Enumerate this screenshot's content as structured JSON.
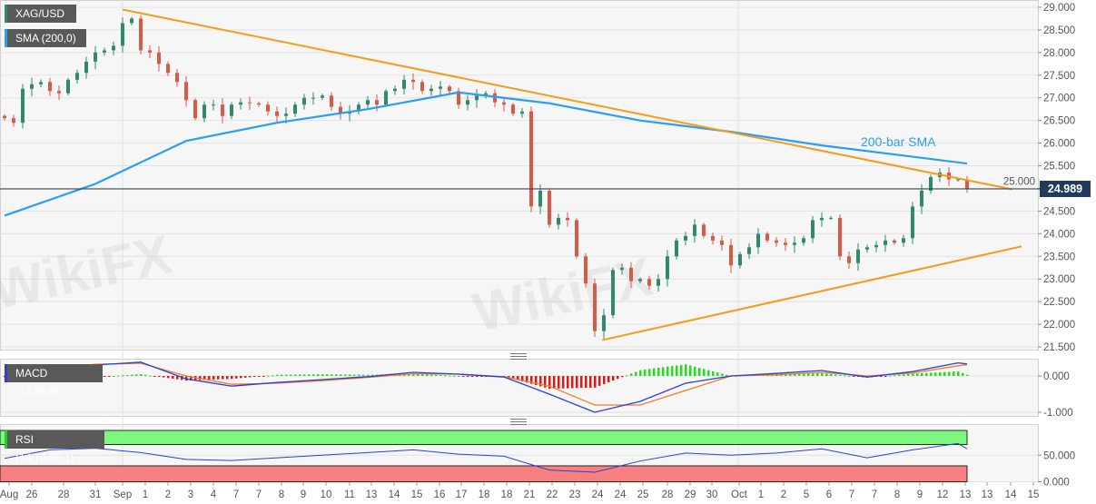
{
  "watermark": "WikiFX",
  "legend": {
    "symbol": "XAG/USD",
    "sma": "SMA (200,0)",
    "macd": "MACD (12,26,9)",
    "rsi": "RSI (14,70,30,1)"
  },
  "annotation": "200-bar SMA",
  "current_price": "24.989",
  "colors": {
    "up": "#2e8b6a",
    "down": "#d65a44",
    "sma": "#2a9df4",
    "trendline": "#f39c1a",
    "macd": "#2b3fd6",
    "signal": "#f07d2a",
    "hist_up": "#22dd22",
    "hist_down": "#e01818",
    "rsi": "#2b3fd6",
    "overbought": "#7ef77e",
    "oversold": "#f77f7f",
    "price_line": "#1f3b5e"
  },
  "chart_data": [
    {
      "type": "candlestick",
      "title": "XAG/USD",
      "ylim": [
        21.5,
        29.0
      ],
      "yticks": [
        "29.000",
        "28.500",
        "28.000",
        "27.500",
        "27.000",
        "26.500",
        "26.000",
        "25.500",
        "25.000",
        "24.500",
        "24.000",
        "23.500",
        "23.000",
        "22.500",
        "22.000",
        "21.500"
      ],
      "grid": true,
      "closes": [
        26.55,
        26.45,
        27.2,
        27.3,
        27.35,
        27.15,
        27.1,
        27.4,
        27.55,
        27.8,
        28.0,
        28.05,
        28.15,
        28.65,
        28.75,
        28.05,
        28.0,
        27.75,
        27.55,
        27.35,
        26.95,
        26.55,
        26.85,
        26.85,
        26.6,
        26.85,
        26.9,
        26.88,
        26.85,
        26.7,
        26.6,
        26.65,
        26.85,
        27.0,
        27.0,
        27.05,
        26.8,
        26.65,
        26.7,
        26.85,
        26.95,
        26.85,
        27.15,
        27.2,
        27.4,
        27.35,
        27.15,
        27.2,
        27.25,
        27.15,
        26.85,
        26.95,
        27.05,
        27.1,
        26.9,
        26.85,
        26.65,
        26.7,
        24.6,
        24.95,
        24.2,
        24.35,
        24.3,
        23.5,
        22.9,
        21.85,
        22.2,
        23.2,
        23.25,
        22.95,
        23.0,
        22.85,
        23.0,
        23.5,
        23.85,
        23.95,
        24.2,
        23.95,
        23.85,
        23.75,
        23.3,
        23.55,
        23.7,
        24.0,
        23.85,
        23.8,
        23.75,
        23.8,
        23.9,
        24.3,
        24.35,
        24.35,
        23.5,
        23.35,
        23.65,
        23.7,
        23.75,
        23.85,
        23.8,
        23.9,
        24.6,
        24.95,
        25.25,
        25.35,
        25.2,
        25.2,
        24.989
      ],
      "sma200": [
        24.4,
        25.1,
        26.05,
        26.45,
        26.75,
        27.12,
        26.88,
        26.5,
        26.25,
        25.95,
        25.7,
        25.55
      ],
      "resistance_line": [
        28.95,
        24.98
      ],
      "support_line": [
        21.65,
        23.72
      ],
      "last_price": 24.989
    },
    {
      "type": "line",
      "title": "MACD (12,26,9)",
      "ylim": [
        -1.0,
        0.5
      ],
      "yticks": [
        "0.000",
        "-1.000"
      ],
      "macd": [
        -0.1,
        0.22,
        0.3,
        0.38,
        -0.08,
        -0.28,
        -0.18,
        -0.1,
        -0.02,
        0.1,
        0.05,
        -0.03,
        -0.5,
        -1.0,
        -0.7,
        -0.2,
        0.0,
        0.07,
        0.15,
        -0.03,
        0.12,
        0.36,
        0.33
      ],
      "signal": [
        -0.08,
        0.2,
        0.32,
        0.35,
        0.0,
        -0.23,
        -0.2,
        -0.13,
        -0.04,
        0.06,
        0.05,
        -0.02,
        -0.28,
        -0.8,
        -0.8,
        -0.4,
        0.0,
        0.03,
        0.1,
        0.0,
        0.08,
        0.28,
        0.31
      ]
    },
    {
      "type": "line",
      "title": "RSI (14,70,30,1)",
      "ylim": [
        0,
        100
      ],
      "yticks": [
        "50.000",
        "0.000"
      ],
      "levels": [
        70,
        30
      ],
      "rsi": [
        44,
        60,
        63,
        55,
        42,
        40,
        45,
        50,
        55,
        60,
        52,
        48,
        22,
        18,
        39,
        54,
        50,
        54,
        62,
        45,
        60,
        72,
        62
      ]
    }
  ],
  "x_axis": {
    "labels": [
      "Aug",
      "26",
      "28",
      "31",
      "Sep",
      "1",
      "2",
      "3",
      "4",
      "7",
      "7",
      "8",
      "9",
      "10",
      "11",
      "13",
      "14",
      "15",
      "16",
      "17",
      "18",
      "18",
      "21",
      "22",
      "23",
      "24",
      "24",
      "25",
      "28",
      "29",
      "30",
      "Oct",
      "1",
      "2",
      "5",
      "6",
      "7",
      "7",
      "8",
      "9",
      "12",
      "13",
      "13",
      "14",
      "15"
    ]
  }
}
